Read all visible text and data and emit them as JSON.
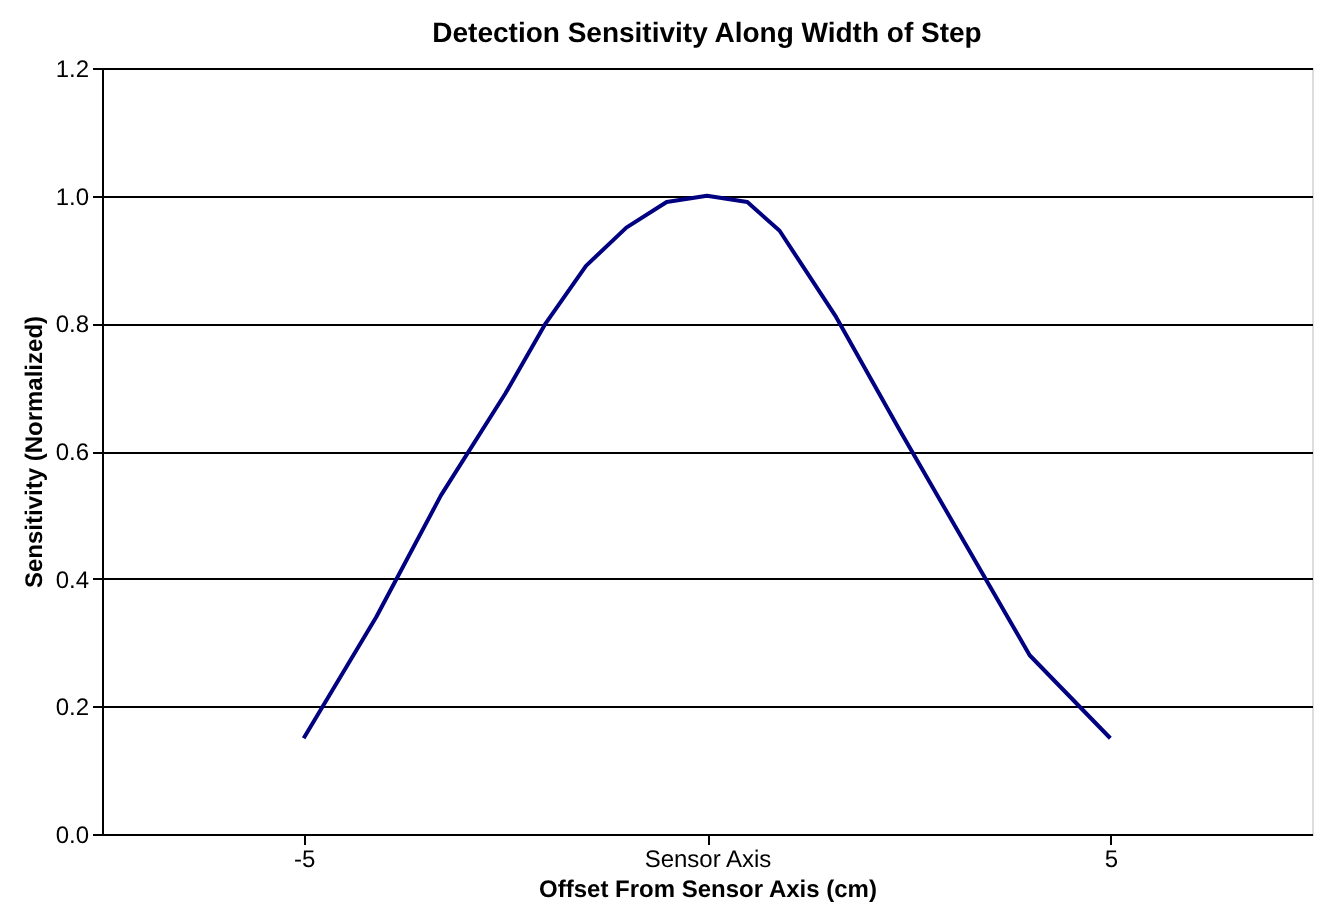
{
  "chart_data": {
    "type": "line",
    "title": "Detection Sensitivity Along Width of Step",
    "xlabel": "Offset From Sensor Axis (cm)",
    "ylabel": "Sensitivity (Normalized)",
    "x": [
      -5,
      -4.1,
      -3.3,
      -2.5,
      -2,
      -1.5,
      -1,
      -0.5,
      0,
      0.5,
      0.9,
      1.6,
      2.4,
      3.2,
      4,
      5
    ],
    "series": [
      {
        "color": "#000080",
        "values": [
          0.15,
          0.34,
          0.53,
          0.69,
          0.8,
          0.89,
          0.95,
          0.99,
          1.0,
          0.99,
          0.945,
          0.81,
          0.63,
          0.455,
          0.28,
          0.15
        ]
      }
    ],
    "xlim": [
      -7.5,
      7.5
    ],
    "xticks": [
      -5,
      {
        "value": 0,
        "label": "Sensor Axis"
      },
      5
    ],
    "ylim": [
      0,
      1.2
    ],
    "yticks": [
      {
        "value": 0,
        "label": "0.0"
      },
      0.2,
      0.4,
      0.6,
      0.8,
      {
        "value": 1,
        "label": "1.0"
      },
      1.2
    ],
    "grid": "y",
    "marker": "none",
    "line_style": "solid"
  }
}
